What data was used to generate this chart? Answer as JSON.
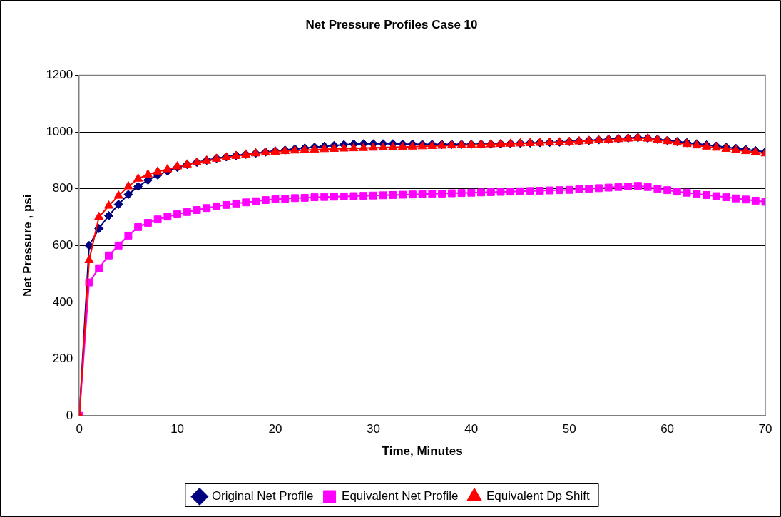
{
  "chart_data": {
    "type": "line",
    "title": "Net Pressure Profiles Case 10",
    "xlabel": "Time, Minutes",
    "ylabel": "Net Pressure , psi",
    "x": [
      0,
      1,
      2,
      3,
      4,
      5,
      6,
      7,
      8,
      9,
      10,
      11,
      12,
      13,
      14,
      15,
      16,
      17,
      18,
      19,
      20,
      21,
      22,
      23,
      24,
      25,
      26,
      27,
      28,
      29,
      30,
      31,
      32,
      33,
      34,
      35,
      36,
      37,
      38,
      39,
      40,
      41,
      42,
      43,
      44,
      45,
      46,
      47,
      48,
      49,
      50,
      51,
      52,
      53,
      54,
      55,
      56,
      57,
      58,
      59,
      60,
      61,
      62,
      63,
      64,
      65,
      66,
      67,
      68,
      69,
      70
    ],
    "series": [
      {
        "name": "Original Net Profile",
        "color": "#000080",
        "marker": "diamond",
        "values": [
          0,
          600,
          660,
          705,
          745,
          780,
          808,
          830,
          848,
          862,
          875,
          885,
          893,
          900,
          907,
          912,
          917,
          921,
          925,
          929,
          933,
          936,
          940,
          943,
          946,
          949,
          952,
          955,
          957,
          958,
          958,
          958,
          958,
          957,
          957,
          956,
          956,
          956,
          956,
          956,
          956,
          957,
          957,
          958,
          959,
          960,
          961,
          962,
          963,
          964,
          966,
          968,
          970,
          972,
          974,
          976,
          978,
          980,
          978,
          974,
          970,
          966,
          962,
          958,
          954,
          950,
          946,
          942,
          938,
          934,
          930
        ]
      },
      {
        "name": "Equivalent Net Profile",
        "color": "#ff00ff",
        "marker": "square",
        "values": [
          0,
          470,
          520,
          565,
          600,
          635,
          665,
          680,
          692,
          702,
          710,
          718,
          725,
          732,
          738,
          743,
          748,
          752,
          756,
          760,
          763,
          765,
          767,
          768,
          770,
          771,
          772,
          773,
          774,
          775,
          776,
          777,
          778,
          779,
          780,
          781,
          782,
          783,
          784,
          785,
          786,
          787,
          788,
          789,
          790,
          791,
          792,
          793,
          794,
          795,
          796,
          798,
          800,
          802,
          804,
          806,
          808,
          810,
          806,
          800,
          795,
          790,
          786,
          782,
          778,
          774,
          770,
          766,
          762,
          758,
          754
        ]
      },
      {
        "name": "Equivalent Dp Shift",
        "color": "#ff0000",
        "marker": "triangle",
        "values": [
          0,
          548,
          700,
          740,
          775,
          808,
          835,
          850,
          860,
          868,
          878,
          885,
          892,
          898,
          905,
          910,
          915,
          920,
          924,
          927,
          930,
          932,
          934,
          936,
          937,
          939,
          940,
          941,
          942,
          943,
          944,
          945,
          946,
          947,
          948,
          949,
          950,
          951,
          952,
          953,
          954,
          955,
          956,
          957,
          958,
          959,
          960,
          961,
          962,
          963,
          964,
          966,
          968,
          970,
          972,
          974,
          976,
          978,
          976,
          972,
          967,
          962,
          957,
          952,
          948,
          944,
          940,
          936,
          932,
          928,
          924
        ]
      }
    ],
    "xlim": [
      0,
      70
    ],
    "xticks": [
      0,
      10,
      20,
      30,
      40,
      50,
      60,
      70
    ],
    "ylim": [
      0,
      1200
    ],
    "yticks": [
      0,
      200,
      400,
      600,
      800,
      1000,
      1200
    ],
    "grid": "y",
    "legend": "bottom"
  }
}
